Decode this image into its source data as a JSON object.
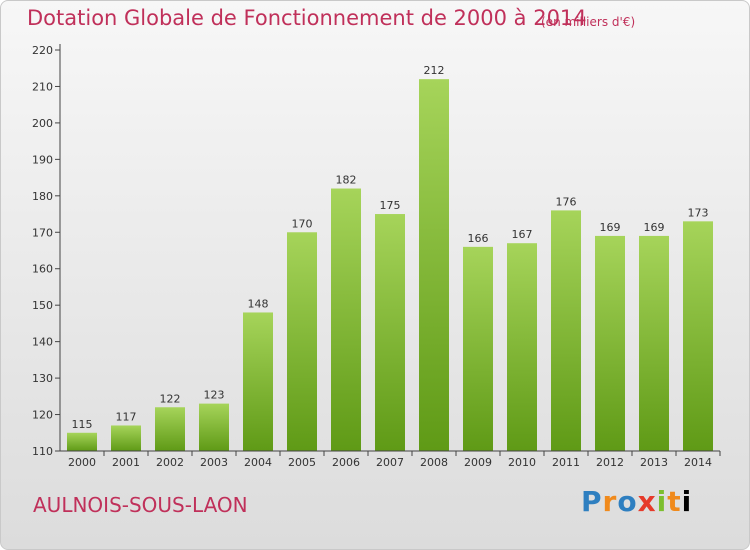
{
  "header": {
    "title": "Dotation Globale de Fonctionnement de 2000 à 2014",
    "unit": "(en milliers d'€)"
  },
  "footer": {
    "commune": "AULNOIS-SOUS-LAON",
    "logo": [
      "P",
      "r",
      "o",
      "x",
      "i",
      "t",
      "i"
    ]
  },
  "colors": {
    "bar_light": "#a6d45a",
    "bar_dark": "#5f9a16",
    "title": "#c0305a"
  },
  "chart_data": {
    "type": "bar",
    "title": "Dotation Globale de Fonctionnement de 2000 à 2014",
    "subtitle": "(en milliers d'€)",
    "categories": [
      "2000",
      "2001",
      "2002",
      "2003",
      "2004",
      "2005",
      "2006",
      "2007",
      "2008",
      "2009",
      "2010",
      "2011",
      "2012",
      "2013",
      "2014"
    ],
    "values": [
      115,
      117,
      122,
      123,
      148,
      170,
      182,
      175,
      212,
      166,
      167,
      176,
      169,
      169,
      173
    ],
    "ylim": [
      110,
      220
    ],
    "yticks": [
      110,
      120,
      130,
      140,
      150,
      160,
      170,
      180,
      190,
      200,
      210,
      220
    ],
    "grid": false,
    "legend": "none"
  }
}
